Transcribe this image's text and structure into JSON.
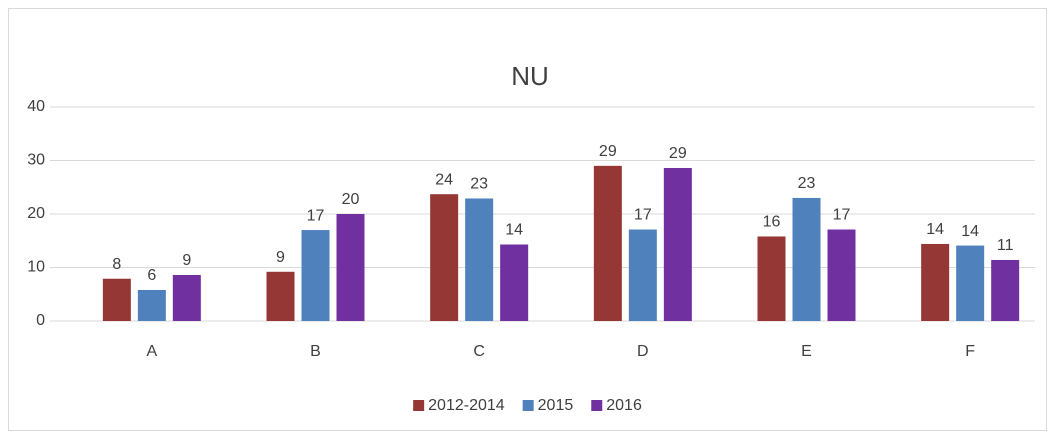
{
  "chart_data": {
    "type": "bar",
    "title": "NU",
    "categories": [
      "A",
      "B",
      "C",
      "D",
      "E",
      "F"
    ],
    "series": [
      {
        "name": "2012-2014",
        "color": "#953735",
        "values": [
          7.9,
          9.2,
          23.7,
          29,
          15.8,
          14.4
        ],
        "value_labels": [
          "8",
          "9",
          "24",
          "29",
          "16",
          "14"
        ]
      },
      {
        "name": "2015",
        "color": "#4f81bd",
        "values": [
          5.8,
          17,
          22.9,
          17.1,
          23,
          14.1
        ],
        "value_labels": [
          "6",
          "17",
          "23",
          "17",
          "23",
          "14"
        ]
      },
      {
        "name": "2016",
        "color": "#7030a0",
        "values": [
          8.6,
          20,
          14.3,
          28.6,
          17.1,
          11.4
        ],
        "value_labels": [
          "9",
          "20",
          "14",
          "29",
          "17",
          "11"
        ]
      }
    ],
    "ylim": [
      0,
      40
    ],
    "yticks": [
      0,
      10,
      20,
      30,
      40
    ],
    "grid": true,
    "legend": "bottom"
  }
}
